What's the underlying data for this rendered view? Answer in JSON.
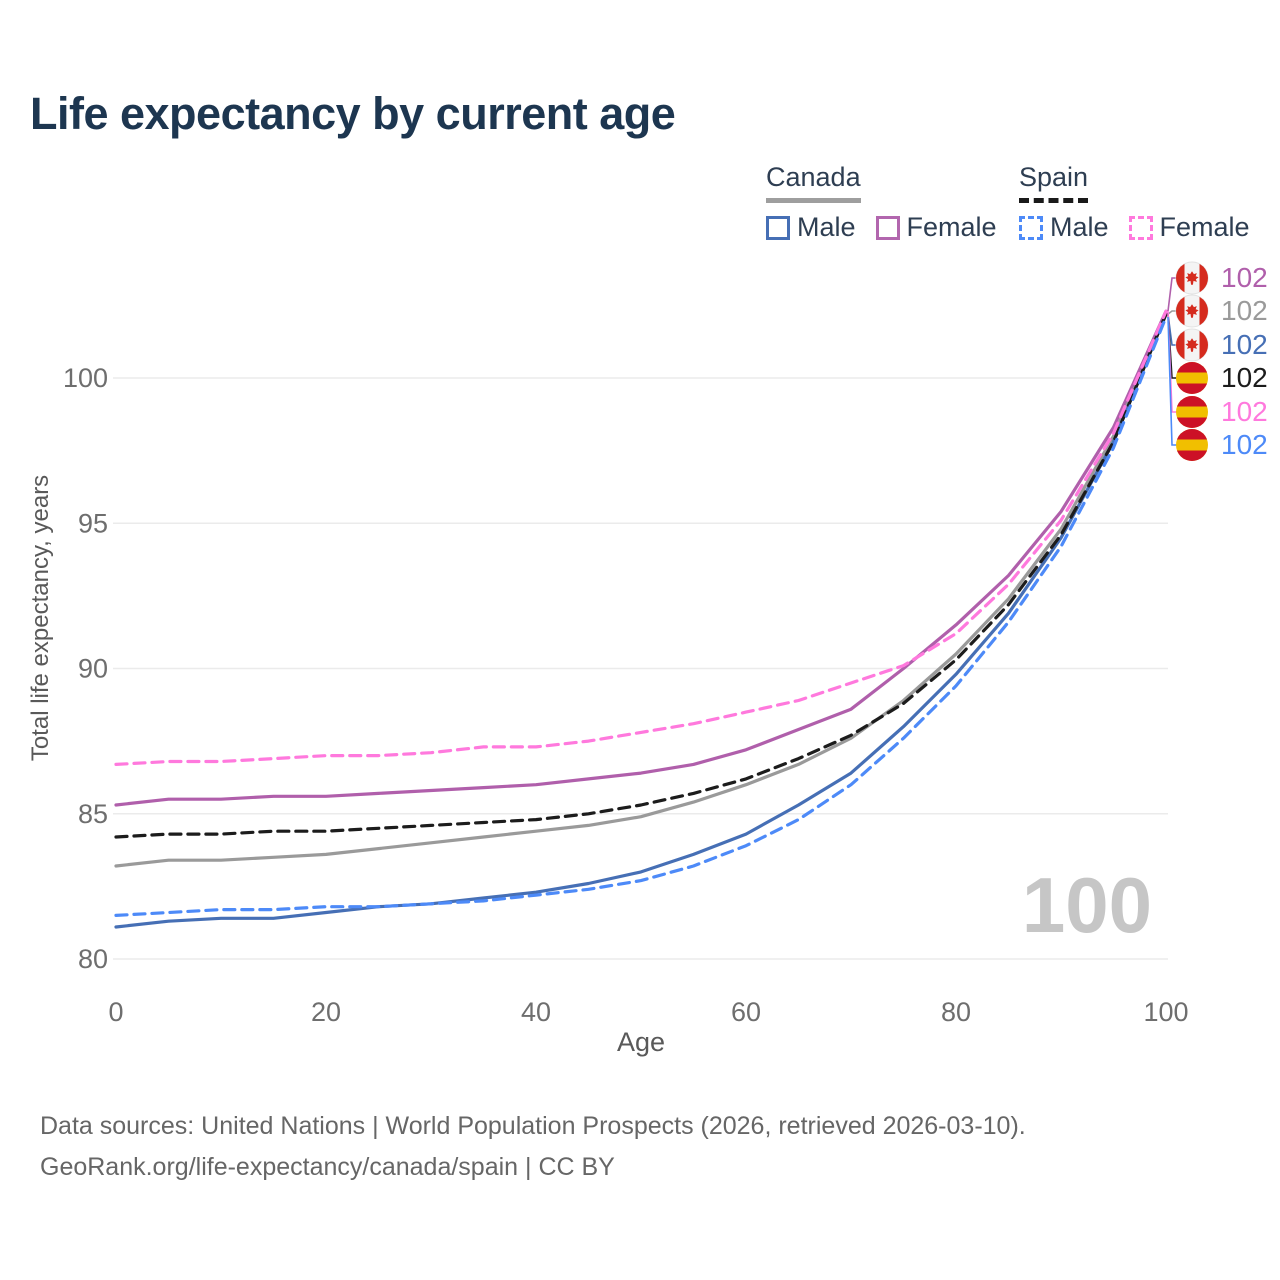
{
  "title": "Life expectancy by current age",
  "watermark": "100",
  "legend": {
    "groups": [
      {
        "label": "Canada",
        "underline_style": "solid",
        "underline_color": "#9e9e9e",
        "items": [
          {
            "label": "Male",
            "color": "#466fb5",
            "dashed": false
          },
          {
            "label": "Female",
            "color": "#b266ae",
            "dashed": false
          }
        ]
      },
      {
        "label": "Spain",
        "underline_style": "dashed",
        "underline_color": "#1a1a1a",
        "items": [
          {
            "label": "Male",
            "color": "#4d8af8",
            "dashed": true
          },
          {
            "label": "Female",
            "color": "#ff79dd",
            "dashed": true
          }
        ]
      }
    ]
  },
  "chart_data": {
    "type": "line",
    "title": "Life expectancy by current age",
    "xlabel": "Age",
    "ylabel": "Total life expectancy, years",
    "xlim": [
      0,
      100
    ],
    "ylim": [
      79.5,
      103
    ],
    "x_ticks": [
      0,
      20,
      40,
      60,
      80,
      100
    ],
    "y_ticks": [
      80,
      85,
      90,
      95,
      100
    ],
    "grid": "horizontal",
    "legend_position": "top-right",
    "x": [
      0,
      5,
      10,
      15,
      20,
      25,
      30,
      35,
      40,
      45,
      50,
      55,
      60,
      65,
      70,
      75,
      80,
      85,
      90,
      95,
      100
    ],
    "series": [
      {
        "name": "Canada (both sexes)",
        "country": "Canada",
        "sex": "Both",
        "color": "#9a9a9a",
        "dashed": false,
        "end_label": "102",
        "values": [
          83.2,
          83.4,
          83.4,
          83.5,
          83.6,
          83.8,
          84.0,
          84.2,
          84.4,
          84.6,
          84.9,
          85.4,
          86.0,
          86.7,
          87.6,
          88.9,
          90.5,
          92.4,
          94.8,
          98.0,
          102.2
        ]
      },
      {
        "name": "Canada Female",
        "country": "Canada",
        "sex": "Female",
        "color": "#b05fab",
        "dashed": false,
        "end_label": "102",
        "values": [
          85.3,
          85.5,
          85.5,
          85.6,
          85.6,
          85.7,
          85.8,
          85.9,
          86.0,
          86.2,
          86.4,
          86.7,
          87.2,
          87.9,
          88.6,
          90.0,
          91.5,
          93.2,
          95.4,
          98.3,
          102.3
        ]
      },
      {
        "name": "Canada Male",
        "country": "Canada",
        "sex": "Male",
        "color": "#466fb5",
        "dashed": false,
        "end_label": "102",
        "values": [
          81.1,
          81.3,
          81.4,
          81.4,
          81.6,
          81.8,
          81.9,
          82.1,
          82.3,
          82.6,
          83.0,
          83.6,
          84.3,
          85.3,
          86.4,
          88.0,
          89.8,
          91.9,
          94.5,
          97.8,
          102.2
        ]
      },
      {
        "name": "Spain (both sexes)",
        "country": "Spain",
        "sex": "Both",
        "color": "#1c1c1c",
        "dashed": true,
        "end_label": "102",
        "values": [
          84.2,
          84.3,
          84.3,
          84.4,
          84.4,
          84.5,
          84.6,
          84.7,
          84.8,
          85.0,
          85.3,
          85.7,
          86.2,
          86.9,
          87.7,
          88.8,
          90.3,
          92.2,
          94.6,
          97.8,
          102.2
        ]
      },
      {
        "name": "Spain Female",
        "country": "Spain",
        "sex": "Female",
        "color": "#ff79dd",
        "dashed": true,
        "end_label": "102",
        "values": [
          86.7,
          86.8,
          86.8,
          86.9,
          87.0,
          87.0,
          87.1,
          87.3,
          87.3,
          87.5,
          87.8,
          88.1,
          88.5,
          88.9,
          89.5,
          90.1,
          91.2,
          92.9,
          95.1,
          98.1,
          102.3
        ]
      },
      {
        "name": "Spain Male",
        "country": "Spain",
        "sex": "Male",
        "color": "#4d8af8",
        "dashed": true,
        "end_label": "102",
        "values": [
          81.5,
          81.6,
          81.7,
          81.7,
          81.8,
          81.8,
          81.9,
          82.0,
          82.2,
          82.4,
          82.7,
          83.2,
          83.9,
          84.8,
          86.0,
          87.6,
          89.4,
          91.6,
          94.2,
          97.6,
          102.1
        ]
      }
    ],
    "end_label_rows": [
      "Canada Female",
      "Canada (both sexes)",
      "Canada Male",
      "Spain (both sexes)",
      "Spain Female",
      "Spain Male"
    ]
  },
  "footer": {
    "line1": "Data sources: United Nations | World Population Prospects (2026, retrieved 2026-03-10).",
    "line2": "GeoRank.org/life-expectancy/canada/spain | CC BY"
  }
}
